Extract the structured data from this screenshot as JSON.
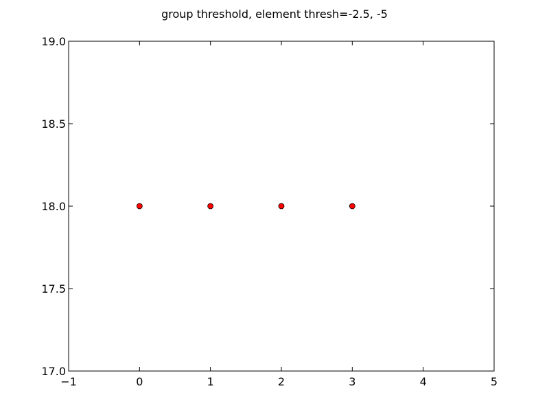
{
  "chart_data": {
    "type": "scatter",
    "title": "group threshold, element thresh=-2.5, -5",
    "xlabel": "",
    "ylabel": "",
    "xlim": [
      -1,
      5
    ],
    "ylim": [
      17.0,
      19.0
    ],
    "xticks": [
      -1,
      0,
      1,
      2,
      3,
      4,
      5
    ],
    "xtick_labels": [
      "−1",
      "0",
      "1",
      "2",
      "3",
      "4",
      "5"
    ],
    "yticks": [
      17.0,
      17.5,
      18.0,
      18.5,
      19.0
    ],
    "ytick_labels": [
      "17.0",
      "17.5",
      "18.0",
      "18.5",
      "19.0"
    ],
    "grid": false,
    "series": [
      {
        "x": [
          0,
          1,
          2,
          3
        ],
        "y": [
          18.0,
          18.0,
          18.0,
          18.0
        ],
        "marker": "circle",
        "color": "#ff0000",
        "edge_color": "#000000"
      }
    ]
  }
}
